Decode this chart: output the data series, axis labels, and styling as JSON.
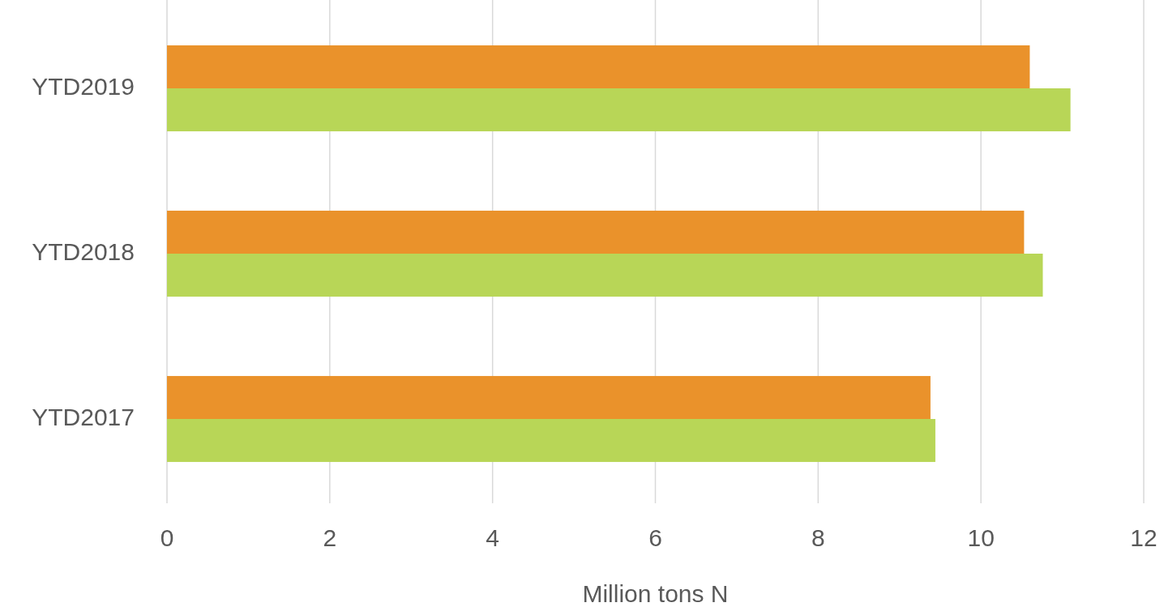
{
  "chart_data": {
    "type": "bar",
    "orientation": "horizontal",
    "xlabel": "Million tons N",
    "categories": [
      "YTD2019",
      "YTD2018",
      "YTD2017"
    ],
    "series": [
      {
        "color": "#ea922b",
        "values": [
          10.6,
          10.53,
          9.38
        ]
      },
      {
        "color": "#b8d657",
        "values": [
          11.1,
          10.76,
          9.44
        ]
      }
    ],
    "xlim": [
      0,
      12
    ],
    "xticks": [
      0,
      2,
      4,
      6,
      8,
      10,
      12
    ],
    "grid": "x"
  }
}
